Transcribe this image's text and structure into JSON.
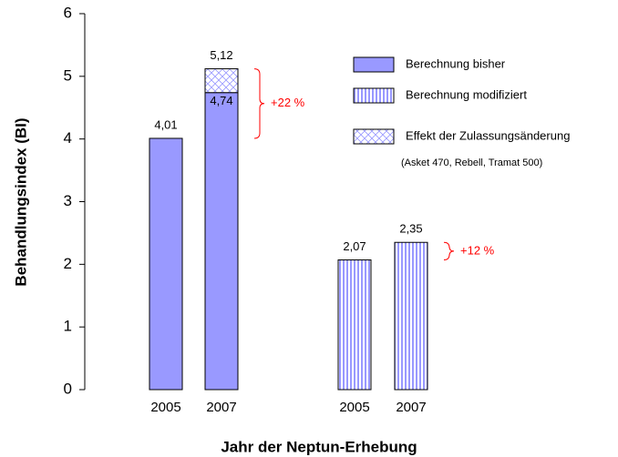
{
  "chart_data": {
    "type": "bar",
    "stacked": true,
    "xlabel": "Jahr der Neptun-Erhebung",
    "ylabel": "Behandlungsindex (BI)",
    "categories": [
      "2005",
      "2007",
      "2005",
      "2007"
    ],
    "series": [
      {
        "name": "Berechnung bisher",
        "color": "#9999ff",
        "pattern": "solid",
        "values": [
          4.01,
          4.74,
          null,
          null
        ],
        "value_labels": [
          "4,01",
          "4,74",
          null,
          null
        ]
      },
      {
        "name": "Berechnung modifiziert",
        "color": "#9999ff",
        "pattern": "vertical",
        "values": [
          null,
          null,
          2.07,
          2.35
        ],
        "value_labels": [
          null,
          null,
          "2,07",
          "2,35"
        ]
      },
      {
        "name": "Effekt der Zulassungsänderung",
        "note": "(Asket 470, Rebell, Tramat 500)",
        "color": "#9999ff",
        "pattern": "diagonal",
        "values": [
          null,
          0.38,
          null,
          null
        ]
      }
    ],
    "totals": {
      "values": [
        null,
        5.12,
        null,
        null
      ],
      "value_labels": [
        null,
        "5,12",
        null,
        null
      ]
    },
    "annotations": [
      {
        "text": "+22 %",
        "color": "#ff0000"
      },
      {
        "text": "+12 %",
        "color": "#ff0000"
      }
    ],
    "ylim": [
      0,
      6
    ],
    "yticks": [
      0,
      1,
      2,
      3,
      4,
      5,
      6
    ],
    "grid": false
  }
}
